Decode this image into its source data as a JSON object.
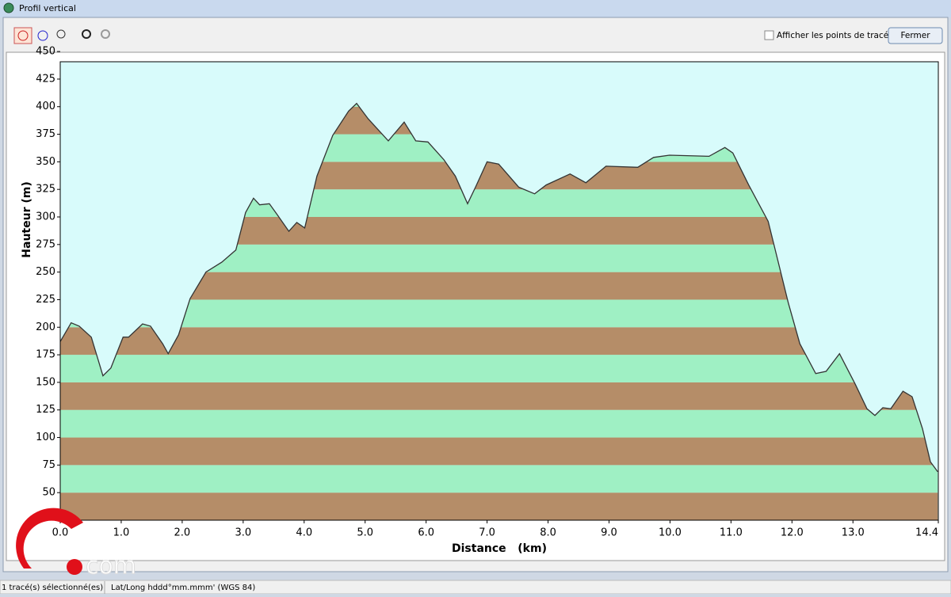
{
  "window": {
    "title": "Profil vertical",
    "checkbox_label": "Afficher les points de tracé",
    "close_button": "Fermer"
  },
  "status_bar": [
    "1 tracé(s) sélectionné(es)",
    "Lat/Long hddd°mm.mmm' (WGS 84)"
  ],
  "watermark": "com",
  "chart_data": {
    "type": "area",
    "x_label": "Distance   (km)",
    "y_label": "Hauteur (m)",
    "x": [
      0,
      0.18,
      0.31,
      0.51,
      0.7,
      0.83,
      1.03,
      1.12,
      1.35,
      1.48,
      1.68,
      1.77,
      1.94,
      2.13,
      2.39,
      2.65,
      2.88,
      3.04,
      3.17,
      3.27,
      3.43,
      3.56,
      3.75,
      3.88,
      4.01,
      4.21,
      4.47,
      4.73,
      4.86,
      5.05,
      5.38,
      5.64,
      5.83,
      6.03,
      6.29,
      6.48,
      6.68,
      6.81,
      7.0,
      7.19,
      7.52,
      7.78,
      7.97,
      8.36,
      8.62,
      8.95,
      9.47,
      9.73,
      9.99,
      10.64,
      10.9,
      11.03,
      11.29,
      11.61,
      11.74,
      11.94,
      12.13,
      12.39,
      12.56,
      12.78,
      13.04,
      13.23,
      13.36,
      13.49,
      13.62,
      13.82,
      13.97,
      14.14,
      14.27,
      14.39
    ],
    "values": [
      187,
      204,
      201,
      191,
      156,
      163,
      191,
      191,
      203,
      201,
      185,
      176,
      193,
      226,
      250,
      259,
      270,
      304,
      317,
      311,
      312,
      302,
      287,
      295,
      290,
      337,
      374,
      396,
      403,
      389,
      369,
      386,
      369,
      368,
      352,
      337,
      312,
      327,
      350,
      348,
      327,
      321,
      329,
      339,
      331,
      346,
      345,
      354,
      356,
      355,
      363,
      358,
      329,
      296,
      267,
      222,
      185,
      158,
      160,
      176,
      148,
      126,
      120,
      127,
      126,
      142,
      137,
      108,
      78,
      69
    ],
    "xlim": [
      0,
      14.4
    ],
    "ylim": [
      25,
      450
    ],
    "xticks": [
      {
        "value": 0,
        "label": "0.0"
      },
      {
        "value": 1,
        "label": "1.0"
      },
      {
        "value": 2,
        "label": "2.0"
      },
      {
        "value": 3,
        "label": "3.0"
      },
      {
        "value": 4,
        "label": "4.0"
      },
      {
        "value": 5,
        "label": "5.0"
      },
      {
        "value": 6,
        "label": "6.0"
      },
      {
        "value": 7,
        "label": "7.0"
      },
      {
        "value": 8,
        "label": "8.0"
      },
      {
        "value": 9,
        "label": "9.0"
      },
      {
        "value": 10,
        "label": "10.0"
      },
      {
        "value": 11,
        "label": "11.0"
      },
      {
        "value": 12,
        "label": "12.0"
      },
      {
        "value": 13,
        "label": "13.0"
      },
      14.4
    ],
    "yticks": [
      50,
      75,
      100,
      125,
      150,
      175,
      200,
      225,
      250,
      275,
      300,
      325,
      350,
      375,
      400,
      425,
      450
    ],
    "background": "#d8fbfb",
    "band_colors": [
      "#b58d68",
      "#9ff0c4"
    ],
    "line_color": "#333333"
  }
}
